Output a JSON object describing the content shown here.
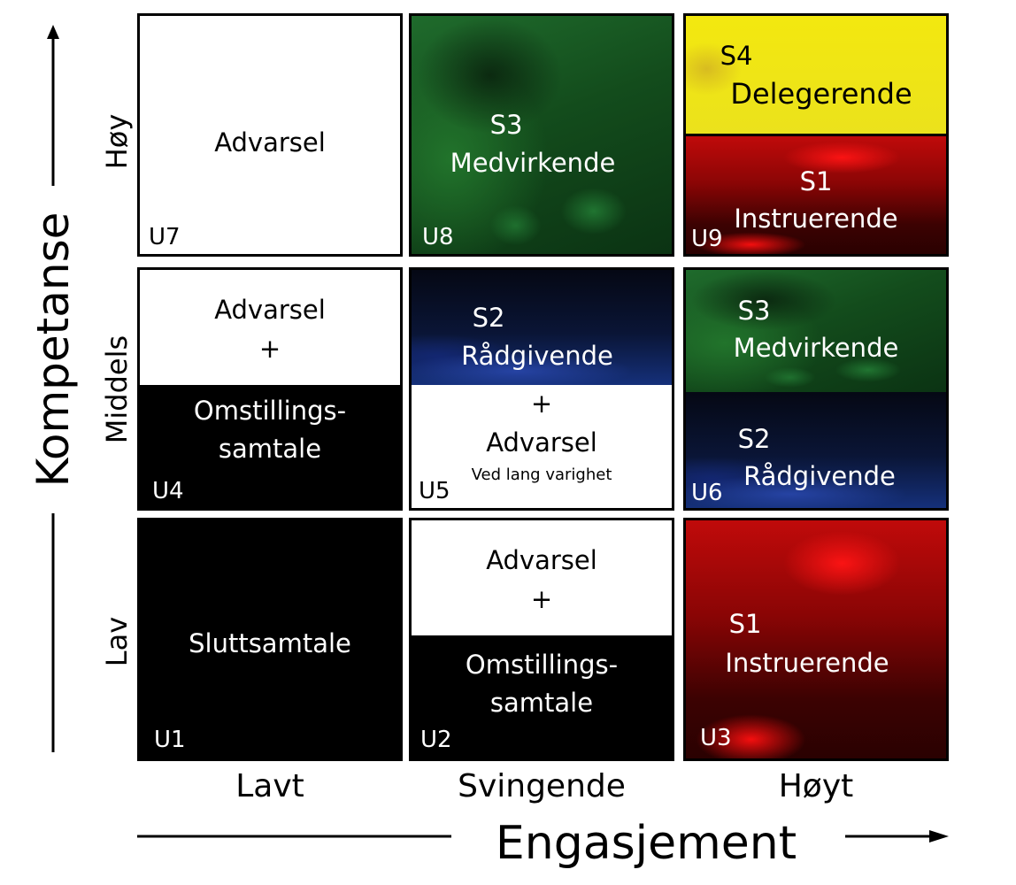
{
  "y_axis": {
    "title": "Kompetanse",
    "levels": {
      "high": "Høy",
      "mid": "Middels",
      "low": "Lav"
    }
  },
  "x_axis": {
    "title": "Engasjement",
    "levels": {
      "low": "Lavt",
      "mid": "Svingende",
      "high": "Høyt"
    }
  },
  "cells": {
    "u7": {
      "code": "U7",
      "text": "Advarsel"
    },
    "u8": {
      "code": "U8",
      "line1": "S3",
      "line2": "Medvirkende"
    },
    "u9": {
      "code": "U9",
      "top_line1": "S4",
      "top_line2": "Delegerende",
      "bottom_line1": "S1",
      "bottom_line2": "Instruerende"
    },
    "u4": {
      "code": "U4",
      "top_line1": "Advarsel",
      "top_line2": "+",
      "bottom_line1": "Omstillings-",
      "bottom_line2": "samtale"
    },
    "u5": {
      "code": "U5",
      "top_line1": "S2",
      "top_line2": "Rådgivende",
      "bottom_line1": "+",
      "bottom_line2": "Advarsel",
      "bottom_note": "Ved lang varighet"
    },
    "u6": {
      "code": "U6",
      "top_line1": "S3",
      "top_line2": "Medvirkende",
      "bottom_line1": "S2",
      "bottom_line2": "Rådgivende"
    },
    "u1": {
      "code": "U1",
      "text": "Sluttsamtale"
    },
    "u2": {
      "code": "U2",
      "top_line1": "Advarsel",
      "top_line2": "+",
      "bottom_line1": "Omstillings-",
      "bottom_line2": "samtale"
    },
    "u3": {
      "code": "U3",
      "line1": "S1",
      "line2": "Instruerende"
    }
  },
  "colors": {
    "s1": "#c00a0a",
    "s2": "#15307a",
    "s3": "#1f6b2c",
    "s4": "#f3e80f"
  }
}
